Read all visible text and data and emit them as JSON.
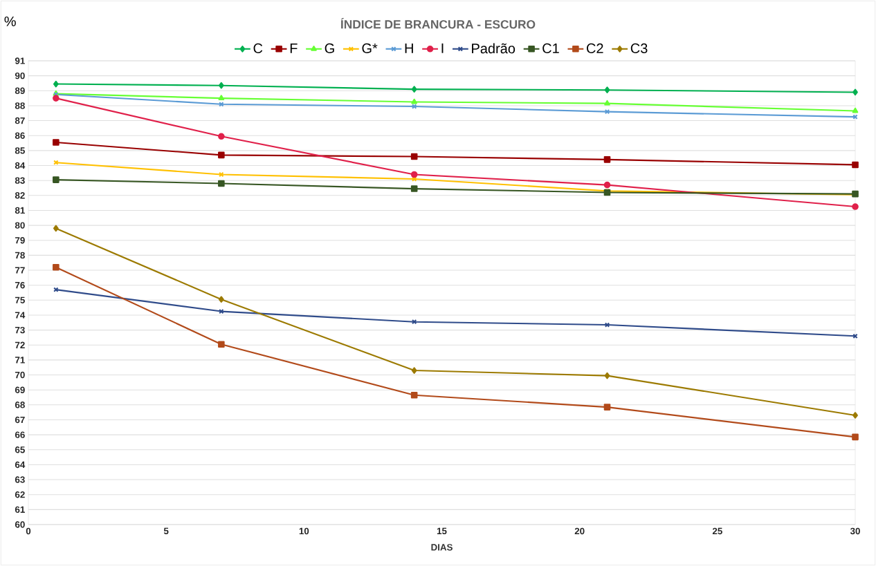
{
  "chart_data": {
    "type": "line",
    "title": "ÍNDICE DE BRANCURA - ESCURO",
    "xlabel": "DIAS",
    "ylabel": "%",
    "x": [
      1,
      7,
      14,
      21,
      30
    ],
    "series": [
      {
        "name": "C",
        "color": "#00b050",
        "marker": "diamond",
        "values": [
          89.45,
          89.35,
          89.1,
          89.05,
          88.9
        ]
      },
      {
        "name": "F",
        "color": "#990000",
        "marker": "square",
        "values": [
          85.55,
          84.7,
          84.6,
          84.4,
          84.05
        ]
      },
      {
        "name": "G",
        "color": "#66ff33",
        "marker": "triangle",
        "values": [
          88.8,
          88.5,
          88.25,
          88.15,
          87.65
        ]
      },
      {
        "name": "G*",
        "color": "#ffc000",
        "marker": "cross",
        "values": [
          84.2,
          83.4,
          83.1,
          82.3,
          82.05
        ]
      },
      {
        "name": "H",
        "color": "#5b9bd5",
        "marker": "cross",
        "values": [
          88.75,
          88.1,
          87.95,
          87.6,
          87.25
        ]
      },
      {
        "name": "I",
        "color": "#e0204a",
        "marker": "circle",
        "values": [
          88.5,
          85.95,
          83.4,
          82.7,
          81.25
        ]
      },
      {
        "name": "Padrão",
        "color": "#2f4b8a",
        "marker": "cross",
        "values": [
          75.7,
          74.25,
          73.55,
          73.35,
          72.6
        ]
      },
      {
        "name": "C1",
        "color": "#375623",
        "marker": "square",
        "values": [
          83.05,
          82.8,
          82.45,
          82.2,
          82.1
        ]
      },
      {
        "name": "C2",
        "color": "#b24a1a",
        "marker": "square",
        "values": [
          77.2,
          72.05,
          68.65,
          67.85,
          65.85
        ]
      },
      {
        "name": "C3",
        "color": "#9c7a00",
        "marker": "diamond",
        "values": [
          79.8,
          75.05,
          70.3,
          69.95,
          67.3
        ]
      }
    ],
    "xlim": [
      0,
      30
    ],
    "xticks": [
      0,
      5,
      10,
      15,
      20,
      25,
      30
    ],
    "ylim": [
      60,
      91
    ],
    "yticks": [
      60,
      61,
      62,
      63,
      64,
      65,
      66,
      67,
      68,
      69,
      70,
      71,
      72,
      73,
      74,
      75,
      76,
      77,
      78,
      79,
      80,
      81,
      82,
      83,
      84,
      85,
      86,
      87,
      88,
      89,
      90,
      91
    ],
    "grid": "y",
    "legend": "top",
    "line_style": "solid"
  }
}
